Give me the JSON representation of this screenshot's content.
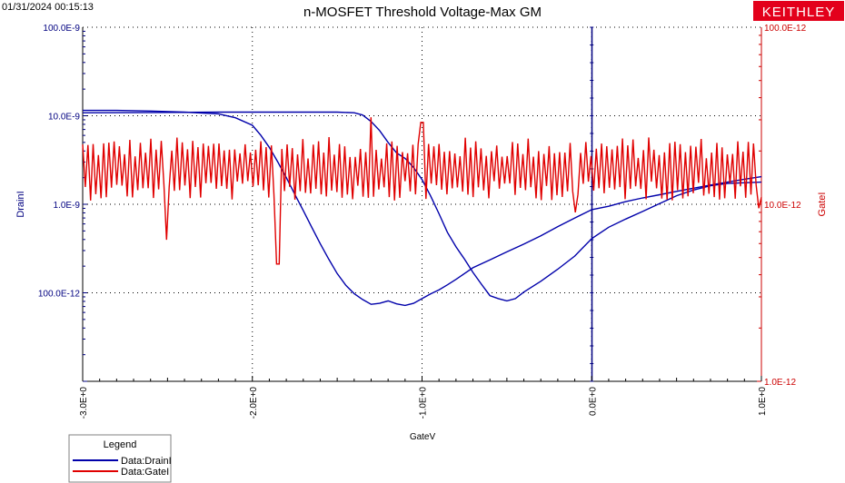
{
  "header": {
    "timestamp": "01/31/2024 00:15:13",
    "brand": "KEITHLEY",
    "brand_color": "#e3001b"
  },
  "chart_data": {
    "type": "line",
    "title": "n-MOSFET Threshold Voltage-Max GM",
    "xlabel": "GateV",
    "ylabel_left": "DrainI",
    "ylabel_right": "GateI",
    "xlim": [
      -3.0,
      1.0
    ],
    "ylim_left": [
      1e-11,
      1e-07
    ],
    "ylim_right": [
      1e-12,
      1e-10
    ],
    "yscale": "log",
    "grid": true,
    "legend_position": "bottom-left",
    "x_ticks": [
      "-3.0E+0",
      "-2.0E+0",
      "-1.0E+0",
      "0.0E+0",
      "1.0E+0"
    ],
    "y_left_ticks": [
      "100.0E-9",
      "10.0E-9",
      "1.0E-9",
      "100.0E-12"
    ],
    "y_right_ticks": [
      "100.0E-12",
      "10.0E-12",
      "1.0E-12"
    ],
    "legend": {
      "title": "Legend",
      "items": [
        "Data:DrainI",
        "Data:GateI"
      ]
    },
    "series": [
      {
        "name": "Data:DrainI",
        "axis": "left",
        "color": "#0000aa",
        "curves": [
          {
            "x": [
              -3.0,
              -2.8,
              -2.6,
              -2.4,
              -2.2,
              -2.1,
              -2.0,
              -1.95,
              -1.9,
              -1.85,
              -1.8,
              -1.75,
              -1.7,
              -1.65,
              -1.6,
              -1.55,
              -1.5,
              -1.45,
              -1.4,
              -1.35,
              -1.3,
              -1.25,
              -1.2,
              -1.15,
              -1.1,
              -1.05,
              -1.0,
              -0.95,
              -0.9,
              -0.85,
              -0.8,
              -0.75,
              -0.7,
              -0.6,
              -0.5,
              -0.4,
              -0.3,
              -0.2,
              -0.1,
              0.0,
              0.1,
              0.2,
              0.3,
              0.4,
              0.5,
              0.6,
              0.7,
              0.8,
              0.9,
              1.0
            ],
            "y": [
              1.15e-08,
              1.15e-08,
              1.13e-08,
              1.1e-08,
              1.05e-08,
              9.5e-09,
              7.8e-09,
              6e-09,
              4.4e-09,
              3e-09,
              2e-09,
              1.3e-09,
              8.5e-10,
              5.5e-10,
              3.6e-10,
              2.4e-10,
              1.65e-10,
              1.22e-10,
              9.8e-11,
              8.4e-11,
              7.4e-11,
              7.6e-11,
              8.1e-11,
              7.5e-11,
              7.2e-11,
              7.6e-11,
              8.6e-11,
              9.7e-11,
              1.08e-10,
              1.23e-10,
              1.42e-10,
              1.65e-10,
              1.92e-10,
              2.35e-10,
              2.9e-10,
              3.55e-10,
              4.4e-10,
              5.6e-10,
              7e-10,
              8.7e-10,
              9.5e-10,
              1.07e-09,
              1.18e-09,
              1.28e-09,
              1.4e-09,
              1.52e-09,
              1.65e-09,
              1.78e-09,
              1.92e-09,
              2.05e-09
            ]
          },
          {
            "x": [
              -3.0,
              -2.6,
              -2.2,
              -1.8,
              -1.6,
              -1.5,
              -1.4,
              -1.35,
              -1.3,
              -1.25,
              -1.2,
              -1.15,
              -1.1,
              -1.05,
              -1.0,
              -0.95,
              -0.9,
              -0.85,
              -0.8,
              -0.75,
              -0.7,
              -0.65,
              -0.6,
              -0.55,
              -0.5,
              -0.45,
              -0.4,
              -0.3,
              -0.2,
              -0.1,
              0.0,
              0.1,
              0.2,
              0.3,
              0.4,
              0.5,
              0.6,
              0.7,
              0.8,
              0.9,
              1.0
            ],
            "y": [
              1.08e-08,
              1.09e-08,
              1.1e-08,
              1.1e-08,
              1.1e-08,
              1.1e-08,
              1.08e-08,
              1.02e-08,
              8.6e-09,
              6.8e-09,
              5e-09,
              3.8e-09,
              3.3e-09,
              2.6e-09,
              1.9e-09,
              1.25e-09,
              7.8e-10,
              4.8e-10,
              3.3e-10,
              2.4e-10,
              1.7e-10,
              1.25e-10,
              9.3e-11,
              8.6e-11,
              8.1e-11,
              8.6e-11,
              1.02e-10,
              1.35e-10,
              1.85e-10,
              2.6e-10,
              4.1e-10,
              5.5e-10,
              6.8e-10,
              8.3e-10,
              1.02e-09,
              1.25e-09,
              1.45e-09,
              1.62e-09,
              1.72e-09,
              1.75e-09,
              1.78e-09
            ]
          }
        ]
      },
      {
        "name": "Data:GateI",
        "axis": "right",
        "color": "#e00000",
        "x_range": [
          -3.0,
          1.0
        ],
        "n_points": 260,
        "y_center": 1.55e-11,
        "y_band": [
          1.05e-11,
          2.4e-11
        ],
        "spikes": [
          {
            "x": -2.5,
            "y": 6.3e-12
          },
          {
            "x": -1.85,
            "y": 4.6e-12
          },
          {
            "x": -1.3,
            "y": 3.1e-11
          },
          {
            "x": -1.0,
            "y": 2.9e-11
          },
          {
            "x": -0.1,
            "y": 9e-12
          },
          {
            "x": 0.99,
            "y": 9.5e-12
          }
        ]
      }
    ]
  }
}
